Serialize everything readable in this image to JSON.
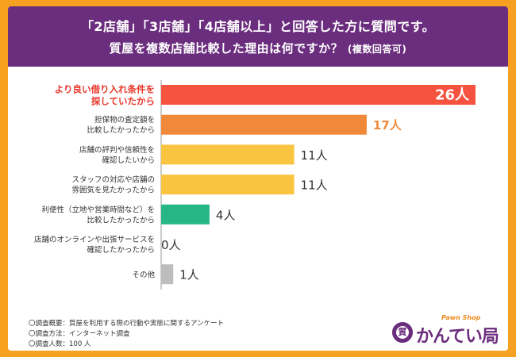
{
  "banner": {
    "line1": "「2店舗」「3店舗」「4店舗以上」と回答した方に質問です。",
    "line2_main": "質屋を複数店舗比較した理由は何ですか？",
    "line2_sub": "(複数回答可)"
  },
  "chart_data": {
    "type": "bar",
    "orientation": "horizontal",
    "title": "質屋を複数店舗比較した理由は何ですか？(複数回答可)",
    "unit": "人",
    "categories": [
      [
        "より良い借り入れ条件を",
        "探していたから"
      ],
      [
        "担保物の査定額を",
        "比較したかったから"
      ],
      [
        "店舗の評判や信頼性を",
        "確認したいから"
      ],
      [
        "スタッフの対応や店舗の",
        "雰囲気を見たかったから"
      ],
      [
        "利便性（立地や営業時間など）を",
        "比較したかったから"
      ],
      [
        "店舗のオンラインや出張サービスを",
        "確認したかったから"
      ],
      [
        "その他"
      ]
    ],
    "values": [
      26,
      17,
      11,
      11,
      4,
      0,
      1
    ],
    "value_labels": [
      "26人",
      "17人",
      "11人",
      "11人",
      "4人",
      "0人",
      "1人"
    ],
    "colors": [
      "#f5523f",
      "#f08a3a",
      "#f9c440",
      "#f9c440",
      "#27b685",
      "#bdbdbd",
      "#bdbdbd"
    ],
    "highlight_color": "#e8372a",
    "xlim": [
      0,
      26
    ],
    "grid": false,
    "legend": "none"
  },
  "notes": [
    "〇調査概要：質屋を利用する際の行動や実態に関するアンケート",
    "〇調査方法：インターネット調査",
    "〇調査人数：100 人"
  ],
  "logo": {
    "tagline": "Pawn Shop",
    "name": "かんてい局",
    "mark": "質",
    "reg": "®"
  }
}
